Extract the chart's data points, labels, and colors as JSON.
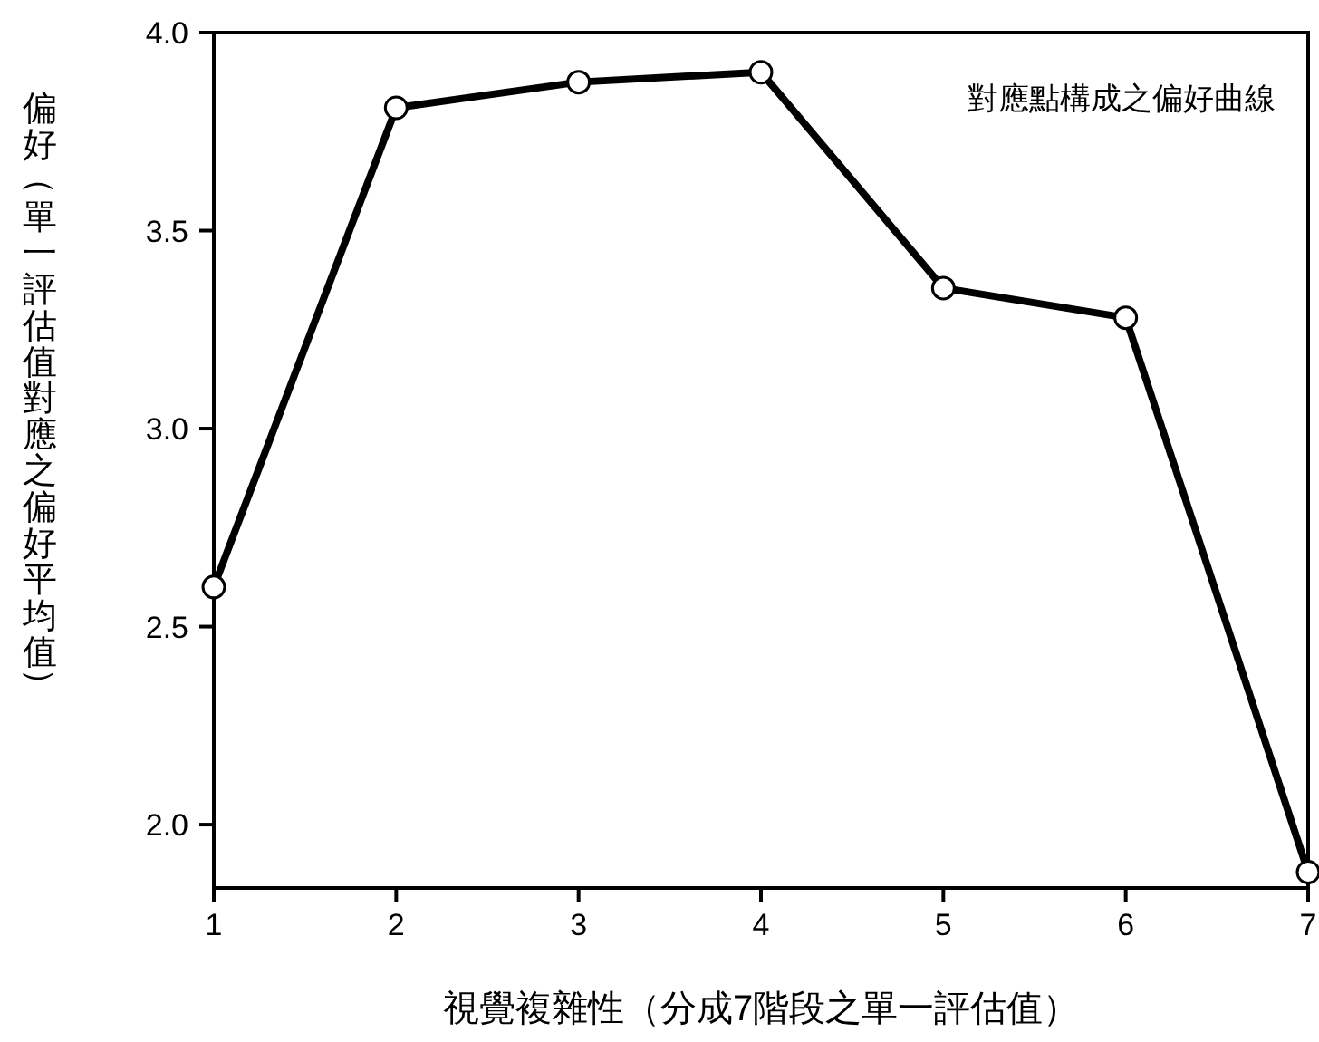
{
  "chart_data": {
    "type": "line",
    "xlabel": "視覺複雜性（分成7階段之單一評估值）",
    "ylabel": "偏好（單一評估值對應之偏好平均值）",
    "annotations": [
      "對應點構成之偏好曲線"
    ],
    "x": [
      1,
      2,
      3,
      4,
      5,
      6,
      7
    ],
    "series": [
      {
        "color": "#000000",
        "values": [
          2.6,
          3.81,
          3.875,
          3.9,
          3.355,
          3.28,
          1.88
        ]
      }
    ],
    "xlim": [
      1,
      7
    ],
    "ylim": [
      1.84,
      4.0
    ],
    "xticks": [
      1,
      2,
      3,
      4,
      5,
      6,
      7
    ],
    "yticks": [
      {
        "value": 2.0,
        "label": "2.0"
      },
      {
        "value": 2.5,
        "label": "2.5"
      },
      {
        "value": 3.0,
        "label": "3.0"
      },
      {
        "value": 3.5,
        "label": "3.5"
      },
      {
        "value": 4.0,
        "label": "4.0"
      }
    ],
    "marker": "circle",
    "line_style": "solid"
  }
}
